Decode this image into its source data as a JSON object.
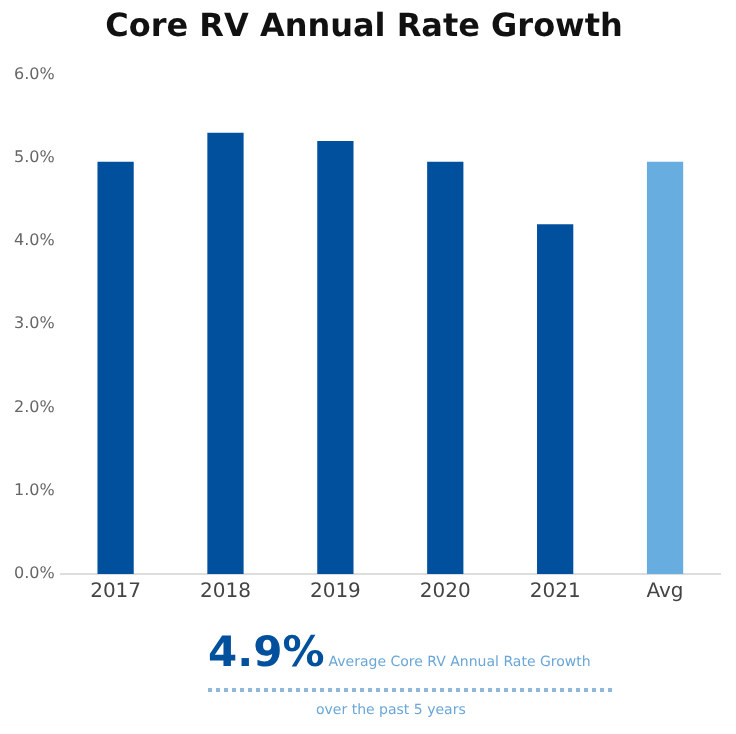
{
  "chart_data": {
    "type": "bar",
    "title": "Core RV Annual Rate Growth",
    "categories": [
      "2017",
      "2018",
      "2019",
      "2020",
      "2021",
      "Avg"
    ],
    "values": [
      4.95,
      5.3,
      5.2,
      4.95,
      4.2,
      4.95
    ],
    "colors": [
      "#00509d",
      "#00509d",
      "#00509d",
      "#00509d",
      "#00509d",
      "#68ade0"
    ],
    "ylim": [
      0,
      6
    ],
    "yticks": [
      {
        "value": 0,
        "label": "0.0%"
      },
      {
        "value": 1,
        "label": "1.0%"
      },
      {
        "value": 2,
        "label": "2.0%"
      },
      {
        "value": 3,
        "label": "3.0%"
      },
      {
        "value": 4,
        "label": "4.0%"
      },
      {
        "value": 5,
        "label": "5.0%"
      },
      {
        "value": 6,
        "label": "6.0%"
      }
    ],
    "grid": false,
    "legend": false,
    "annotations": [
      "4.9%",
      "Average Core RV Annual Rate Growth",
      "over the past 5 years"
    ]
  }
}
